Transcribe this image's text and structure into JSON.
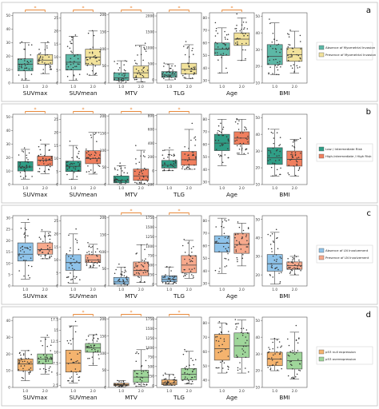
{
  "figure": {
    "colors": {
      "panel_border": "#bfbfbf",
      "sig_bracket": "#e8893a",
      "point": "#333333",
      "whisker": "#444444"
    },
    "panels": [
      {
        "label": "a",
        "legend": [
          "Absence of Myometrial Invasion",
          "Presence of Myometrial Invasion"
        ],
        "colors": [
          "#5cb8a6",
          "#f2e29b"
        ],
        "chart_data": [
          {
            "type": "box",
            "xlabel": "SUVmax",
            "ticks": [
              0,
              10,
              20,
              30,
              40,
              50
            ],
            "ylim": [
              0,
              52
            ],
            "xticks": [
              "1.0",
              "2.0"
            ],
            "sig": true,
            "boxes": [
              [
                2,
                9,
                14,
                18,
                30
              ],
              [
                7,
                14,
                17,
                21,
                30
              ]
            ]
          },
          {
            "type": "box",
            "xlabel": "SUVmean",
            "ticks": [
              0,
              5,
              10,
              15,
              20,
              25
            ],
            "ylim": [
              0,
              27
            ],
            "xticks": [
              "1.0",
              "2.0"
            ],
            "sig": true,
            "boxes": [
              [
                1,
                5,
                8,
                11,
                18
              ],
              [
                3,
                7,
                10,
                13,
                20
              ]
            ]
          },
          {
            "type": "box",
            "xlabel": "MTV",
            "ticks": [
              0,
              50,
              100,
              150,
              200
            ],
            "ylim": [
              0,
              205
            ],
            "xticks": [
              "1.0",
              "2.0"
            ],
            "sig": true,
            "boxes": [
              [
                0,
                8,
                15,
                30,
                65
              ],
              [
                3,
                15,
                30,
                50,
                110
              ]
            ]
          },
          {
            "type": "box",
            "xlabel": "TLG",
            "ticks": [
              0,
              500,
              1000,
              1500,
              2000
            ],
            "ylim": [
              -100,
              2100
            ],
            "xticks": [
              "1.0",
              "2.0"
            ],
            "sig": true,
            "boxes": [
              [
                0,
                80,
                150,
                260,
                500
              ],
              [
                40,
                180,
                330,
                520,
                1100
              ]
            ]
          },
          {
            "type": "box",
            "xlabel": "Age",
            "ticks": [
              30,
              40,
              50,
              60,
              70,
              80
            ],
            "ylim": [
              28,
              84
            ],
            "xticks": [
              "1.0",
              "2.0"
            ],
            "sig": true,
            "boxes": [
              [
                36,
                50,
                55,
                60,
                72
              ],
              [
                46,
                58,
                63,
                68,
                80
              ]
            ]
          },
          {
            "type": "box",
            "xlabel": "BMI",
            "ticks": [
              10,
              20,
              30,
              40,
              50
            ],
            "ylim": [
              10,
              52
            ],
            "xticks": [
              "1.0",
              "2.0"
            ],
            "sig": false,
            "boxes": [
              [
                15,
                21,
                26,
                33,
                46
              ],
              [
                16,
                23,
                27,
                31,
                41
              ]
            ]
          }
        ]
      },
      {
        "label": "b",
        "legend": [
          "Low / Intermediate Risk",
          "High-Intermediate / High Risk"
        ],
        "colors": [
          "#2f9e86",
          "#f07f5e"
        ],
        "chart_data": [
          {
            "type": "box",
            "xlabel": "SUVmax",
            "ticks": [
              0,
              10,
              20,
              30,
              40,
              50
            ],
            "ylim": [
              0,
              52
            ],
            "xticks": [
              "1.0",
              "2.0"
            ],
            "sig": true,
            "boxes": [
              [
                4,
                10,
                13,
                17,
                26
              ],
              [
                8,
                14,
                18,
                21,
                30
              ]
            ]
          },
          {
            "type": "box",
            "xlabel": "SUVmean",
            "ticks": [
              0,
              5,
              10,
              15,
              20,
              25
            ],
            "ylim": [
              0,
              27
            ],
            "xticks": [
              "1.0",
              "2.0"
            ],
            "sig": true,
            "boxes": [
              [
                2,
                5,
                7,
                9,
                15
              ],
              [
                4,
                8,
                10,
                13,
                20
              ]
            ]
          },
          {
            "type": "box",
            "xlabel": "MTV",
            "ticks": [
              0,
              50,
              100,
              150,
              200
            ],
            "ylim": [
              0,
              205
            ],
            "xticks": [
              "1.0",
              "2.0"
            ],
            "sig": true,
            "boxes": [
              [
                0,
                5,
                12,
                25,
                55
              ],
              [
                2,
                12,
                25,
                45,
                100
              ]
            ]
          },
          {
            "type": "box",
            "xlabel": "TLG",
            "ticks": [
              -200,
              0,
              200,
              400,
              600,
              800
            ],
            "ylim": [
              -200,
              820
            ],
            "xticks": [
              "1.0",
              "2.0"
            ],
            "sig": true,
            "boxes": [
              [
                0,
                40,
                80,
                150,
                300
              ],
              [
                20,
                80,
                160,
                280,
                600
              ]
            ]
          },
          {
            "type": "box",
            "xlabel": "Age",
            "ticks": [
              30,
              40,
              50,
              60,
              70,
              80
            ],
            "ylim": [
              28,
              84
            ],
            "xticks": [
              "1.0",
              "2.0"
            ],
            "sig": false,
            "boxes": [
              [
                43,
                55,
                61,
                68,
                80
              ],
              [
                52,
                60,
                65,
                70,
                80
              ]
            ]
          },
          {
            "type": "box",
            "xlabel": "BMI",
            "ticks": [
              10,
              20,
              30,
              40,
              50
            ],
            "ylim": [
              10,
              52
            ],
            "xticks": [
              "1.0",
              "2.0"
            ],
            "sig": false,
            "boxes": [
              [
                15,
                22,
                26,
                32,
                43
              ],
              [
                15,
                21,
                25,
                30,
                37
              ]
            ]
          }
        ]
      },
      {
        "label": "c",
        "legend": [
          "Absence of LN Involvement",
          "Presence of LN Involvement"
        ],
        "colors": [
          "#8ec3ea",
          "#f7a98c"
        ],
        "chart_data": [
          {
            "type": "box",
            "xlabel": "SUVmax",
            "ticks": [
              0,
              5,
              10,
              15,
              20,
              25,
              30
            ],
            "ylim": [
              0,
              31
            ],
            "xticks": [
              "1.0",
              "2.0"
            ],
            "sig": false,
            "boxes": [
              [
                3,
                11,
                14,
                19,
                28
              ],
              [
                12,
                14,
                16,
                19,
                24
              ]
            ]
          },
          {
            "type": "box",
            "xlabel": "SUVmean",
            "ticks": [
              0,
              5,
              10,
              15,
              20,
              25
            ],
            "ylim": [
              0,
              27
            ],
            "xticks": [
              "1.0",
              "2.0"
            ],
            "sig": false,
            "boxes": [
              [
                1,
                6,
                9,
                12,
                20
              ],
              [
                7,
                9,
                10,
                12,
                16
              ]
            ]
          },
          {
            "type": "box",
            "xlabel": "MTV",
            "ticks": [
              0,
              50,
              100,
              150,
              200
            ],
            "ylim": [
              0,
              205
            ],
            "xticks": [
              "1.0",
              "2.0"
            ],
            "sig": true,
            "boxes": [
              [
                0,
                5,
                12,
                25,
                55
              ],
              [
                10,
                30,
                45,
                70,
                120
              ]
            ]
          },
          {
            "type": "box",
            "xlabel": "TLG",
            "ticks": [
              0,
              250,
              500,
              750,
              1000,
              1250,
              1500,
              1750
            ],
            "ylim": [
              -50,
              1800
            ],
            "xticks": [
              "1.0",
              "2.0"
            ],
            "sig": true,
            "boxes": [
              [
                0,
                60,
                120,
                220,
                450
              ],
              [
                150,
                300,
                500,
                750,
                1150
              ]
            ]
          },
          {
            "type": "box",
            "xlabel": "Age",
            "ticks": [
              30,
              40,
              50,
              60,
              70,
              80
            ],
            "ylim": [
              28,
              84
            ],
            "xticks": [
              "1.0",
              "2.0"
            ],
            "sig": false,
            "boxes": [
              [
                38,
                55,
                62,
                68,
                82
              ],
              [
                44,
                54,
                61,
                70,
                78
              ]
            ]
          },
          {
            "type": "box",
            "xlabel": "BMI",
            "ticks": [
              20,
              30,
              40,
              50
            ],
            "ylim": [
              14,
              52
            ],
            "xticks": [
              "1.0",
              "2.0"
            ],
            "sig": false,
            "boxes": [
              [
                15,
                22,
                26,
                31,
                43
              ],
              [
                20,
                23,
                25,
                27,
                30
              ]
            ]
          }
        ]
      },
      {
        "label": "d",
        "legend": [
          "p53 null expression",
          "p53 overexpression"
        ],
        "colors": [
          "#f4b36e",
          "#9fd69a"
        ],
        "chart_data": [
          {
            "type": "box",
            "xlabel": "SUVmax",
            "ticks": [
              0,
              10,
              20,
              30,
              40
            ],
            "ylim": [
              0,
              42
            ],
            "xticks": [
              "1.0",
              "2.0"
            ],
            "sig": false,
            "boxes": [
              [
                4,
                10,
                14,
                17,
                22
              ],
              [
                8,
                14,
                17,
                20,
                30
              ]
            ]
          },
          {
            "type": "box",
            "xlabel": "SUVmean",
            "ticks": [
              2.5,
              5.0,
              7.5,
              10.0,
              12.5,
              15.0,
              17.5
            ],
            "ylim": [
              2,
              18
            ],
            "xticks": [
              "1.0",
              "2.0"
            ],
            "sig": true,
            "boxes": [
              [
                3,
                5.5,
                7.5,
                10.5,
                16
              ],
              [
                7,
                10,
                11,
                12,
                14
              ]
            ]
          },
          {
            "type": "box",
            "xlabel": "MTV",
            "ticks": [
              0,
              50,
              100,
              150,
              200
            ],
            "ylim": [
              0,
              205
            ],
            "xticks": [
              "1.0",
              "2.0"
            ],
            "sig": true,
            "boxes": [
              [
                1,
                5,
                8,
                12,
                20
              ],
              [
                3,
                15,
                30,
                50,
                110
              ]
            ]
          },
          {
            "type": "box",
            "xlabel": "TLG",
            "ticks": [
              0,
              250,
              500,
              750,
              1000,
              1250,
              1500,
              1750
            ],
            "ylim": [
              -50,
              1800
            ],
            "xticks": [
              "1.0",
              "2.0"
            ],
            "sig": true,
            "boxes": [
              [
                5,
                20,
                60,
                150,
                300
              ],
              [
                40,
                150,
                300,
                450,
                900
              ]
            ]
          },
          {
            "type": "box",
            "xlabel": "Age",
            "ticks": [
              40,
              50,
              60,
              70,
              80
            ],
            "ylim": [
              35,
              84
            ],
            "xticks": [
              "1.0",
              "2.0"
            ],
            "sig": false,
            "boxes": [
              [
                45,
                54,
                62,
                72,
                80
              ],
              [
                45,
                56,
                64,
                73,
                82
              ]
            ]
          },
          {
            "type": "box",
            "xlabel": "BMI",
            "ticks": [
              10,
              20,
              30,
              40,
              50
            ],
            "ylim": [
              10,
              52
            ],
            "xticks": [
              "1.0",
              "2.0"
            ],
            "sig": false,
            "boxes": [
              [
                20,
                23,
                27,
                31,
                39
              ],
              [
                15,
                21,
                26,
                31,
                43
              ]
            ]
          }
        ]
      }
    ]
  }
}
